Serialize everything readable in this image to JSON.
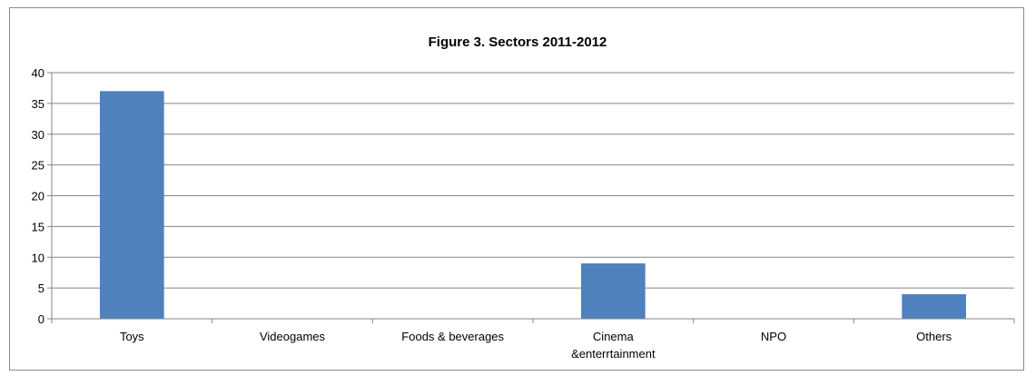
{
  "chart_data": {
    "type": "bar",
    "title": "Figure 3. Sectors 2011-2012",
    "categories": [
      "Toys",
      "Videogames",
      "Foods & beverages",
      "Cinema\n&enterrtainment",
      "NPO",
      "Others"
    ],
    "series": [
      {
        "values": [
          37,
          0,
          0,
          9,
          0,
          4
        ]
      }
    ],
    "ylim": [
      0,
      40
    ],
    "yticks": [
      0,
      5,
      10,
      15,
      20,
      25,
      30,
      35,
      40
    ],
    "grid": true,
    "legend": "none",
    "bar_color": "#4f81bd",
    "grid_color": "#868686"
  }
}
